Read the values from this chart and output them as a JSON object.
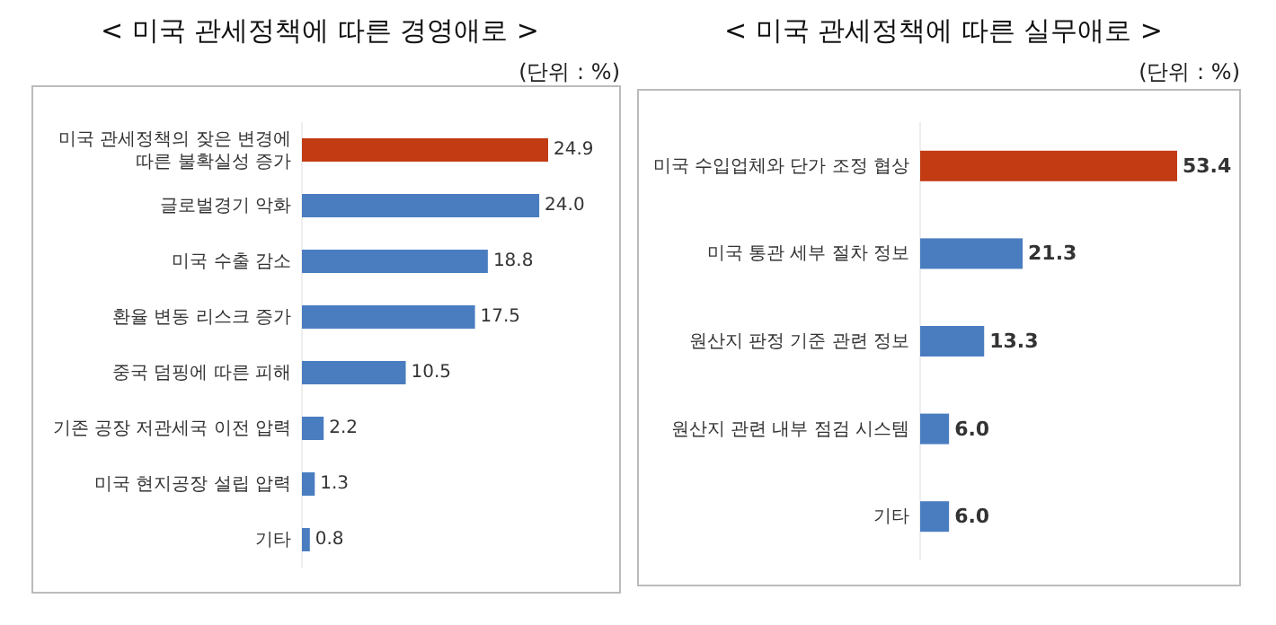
{
  "chart_data": [
    {
      "type": "bar",
      "orientation": "horizontal",
      "title": "< 미국 관세정책에 따른 경영애로 >",
      "subtitle": "(단위 : %)",
      "categories": [
        "미국 관세정책의 잦은 변경에 따른 불확실성 증가",
        "글로벌경기 악화",
        "미국 수출 감소",
        "환율 변동 리스크 증가",
        "중국 덤핑에 따른 피해",
        "기존 공장 저관세국 이전 압력",
        "미국 현지공장 설립 압력",
        "기타"
      ],
      "values": [
        24.9,
        24.0,
        18.8,
        17.5,
        10.5,
        2.2,
        1.3,
        0.8
      ],
      "value_labels": [
        "24.9",
        "24.0",
        "18.8",
        "17.5",
        "10.5",
        "2.2",
        "1.3",
        "0.8"
      ],
      "colors": [
        "#c23b13",
        "#4a7dc0",
        "#4a7dc0",
        "#4a7dc0",
        "#4a7dc0",
        "#4a7dc0",
        "#4a7dc0",
        "#4a7dc0"
      ]
    },
    {
      "type": "bar",
      "orientation": "horizontal",
      "title": "< 미국 관세정책에 따른 실무애로 >",
      "subtitle": "(단위 : %)",
      "categories": [
        "미국 수입업체와 단가 조정 협상",
        "미국 통관 세부 절차 정보",
        "원산지 판정 기준 관련 정보",
        "원산지 관련 내부 점검 시스템",
        "기타"
      ],
      "values": [
        53.4,
        21.3,
        13.3,
        6.0,
        6.0
      ],
      "value_labels": [
        "53.4",
        "21.3",
        "13.3",
        "6.0",
        "6.0"
      ],
      "colors": [
        "#c23b13",
        "#4a7dc0",
        "#4a7dc0",
        "#4a7dc0",
        "#4a7dc0"
      ]
    }
  ]
}
